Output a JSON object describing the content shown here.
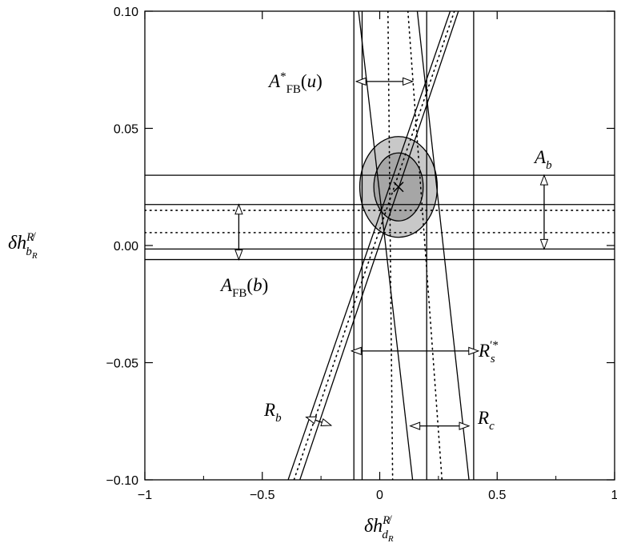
{
  "chart_data": {
    "type": "line",
    "title": "",
    "xlabel": "δh^{R̸}_{d_R}",
    "ylabel": "δh^{R̸}_{b_R}",
    "xlim": [
      -1,
      1
    ],
    "ylim": [
      -0.1,
      0.1
    ],
    "x_ticks": [
      -1,
      -0.5,
      0,
      0.5,
      1
    ],
    "x_tick_labels": [
      "−1",
      "−0.5",
      "0",
      "0.5",
      "1"
    ],
    "y_ticks": [
      -0.1,
      -0.05,
      0,
      0.05,
      0.1
    ],
    "y_tick_labels": [
      "−0.10",
      "−0.05",
      "0.00",
      "0.05",
      "0.10"
    ],
    "grid": false,
    "best_fit": {
      "x": 0.08,
      "y": 0.025
    },
    "ellipses": [
      {
        "name": "outer",
        "cx": 0.08,
        "cy": 0.025,
        "rx": 0.165,
        "ry": 0.0215,
        "fill": "#c8c8c8"
      },
      {
        "name": "inner",
        "cx": 0.08,
        "cy": 0.025,
        "rx": 0.105,
        "ry": 0.0145,
        "fill": "#a6a6a6"
      }
    ],
    "bands": [
      {
        "name": "Ab",
        "label": "A_b",
        "kind": "horizontal",
        "solid": [
          -0.0015,
          0.03
        ]
      },
      {
        "name": "AFBb",
        "label": "A_FB(b)",
        "kind": "horizontal",
        "solid": [
          -0.006,
          0.0175
        ],
        "dotted": [
          0.0055,
          0.015
        ]
      },
      {
        "name": "Rs",
        "label": "R'*_s",
        "kind": "vertical",
        "solid": [
          -0.11,
          0.4
        ]
      },
      {
        "name": "AFBu",
        "label": "A*_FB(u)",
        "kind": "vertical",
        "solid": [
          -0.075,
          0.2
        ]
      },
      {
        "name": "Rc",
        "label": "R_c",
        "kind": "slanted",
        "lines": [
          {
            "top": -0.09,
            "bottom": 0.14
          },
          {
            "top": 0.16,
            "bottom": 0.38
          }
        ],
        "dotted": [
          {
            "top": 0.035,
            "bottom": 0.055
          },
          {
            "top": 0.12,
            "bottom": 0.265
          }
        ]
      },
      {
        "name": "Rb",
        "label": "R_b",
        "kind": "slanted",
        "lines": [
          {
            "top": 0.3,
            "bottom": -0.39
          },
          {
            "top": 0.335,
            "bottom": -0.34
          }
        ],
        "dotted": [
          {
            "top": 0.318,
            "bottom": -0.365
          }
        ]
      }
    ],
    "annotations": [
      {
        "name": "AFBu",
        "text": "A*FB(u)",
        "arrow_x": [
          -0.1,
          0.14
        ],
        "arrow_y": 0.07
      },
      {
        "name": "Ab",
        "text": "Ab",
        "arrow_x": [
          0.7,
          0.7
        ],
        "arrow_y": [
          0.03,
          -0.0015
        ]
      },
      {
        "name": "AFBb",
        "text": "AFB(b)",
        "arrow_x": [
          -0.6,
          -0.6
        ],
        "arrow_y": [
          0.0175,
          -0.006
        ]
      },
      {
        "name": "Rs",
        "text": "R′*s",
        "arrow_x": [
          -0.12,
          0.42
        ],
        "arrow_y": -0.045
      },
      {
        "name": "Rc",
        "text": "Rc",
        "arrow_x": [
          0.13,
          0.38
        ],
        "arrow_y": -0.077
      },
      {
        "name": "Rb",
        "text": "Rb",
        "arrow_x": [
          -0.34,
          -0.18
        ],
        "arrow_y": -0.075
      }
    ]
  }
}
